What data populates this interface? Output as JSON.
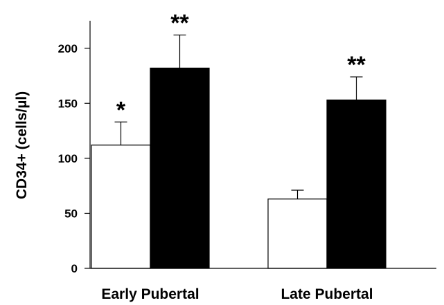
{
  "chart_data": {
    "type": "bar",
    "title": "",
    "xlabel": "",
    "ylabel": "CD34+ (cells/µl)",
    "ylim": [
      0,
      225
    ],
    "yticks": [
      0,
      50,
      100,
      150,
      200
    ],
    "categories": [
      "Early Pubertal",
      "Late Pubertal"
    ],
    "series": [
      {
        "color": "#ffffff",
        "values": [
          112,
          63
        ],
        "errors": [
          21,
          8
        ],
        "annotations": [
          "*",
          ""
        ]
      },
      {
        "color": "#000000",
        "values": [
          182,
          153
        ],
        "errors": [
          30,
          21
        ],
        "annotations": [
          "**",
          "**"
        ]
      }
    ],
    "legend": "none",
    "grid": false
  }
}
